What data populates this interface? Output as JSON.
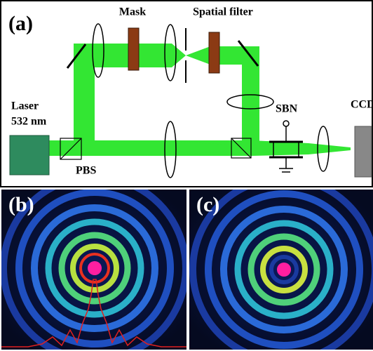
{
  "panel_a": {
    "label": "(a)",
    "mask": "Mask",
    "spatial_filter": "Spatial filter",
    "laser": "Laser",
    "wavelength": "532 nm",
    "pbs": "PBS",
    "sbn": "SBN",
    "ccd": "CCD"
  },
  "panel_b": {
    "label": "(b)"
  },
  "panel_c": {
    "label": "(c)"
  }
}
